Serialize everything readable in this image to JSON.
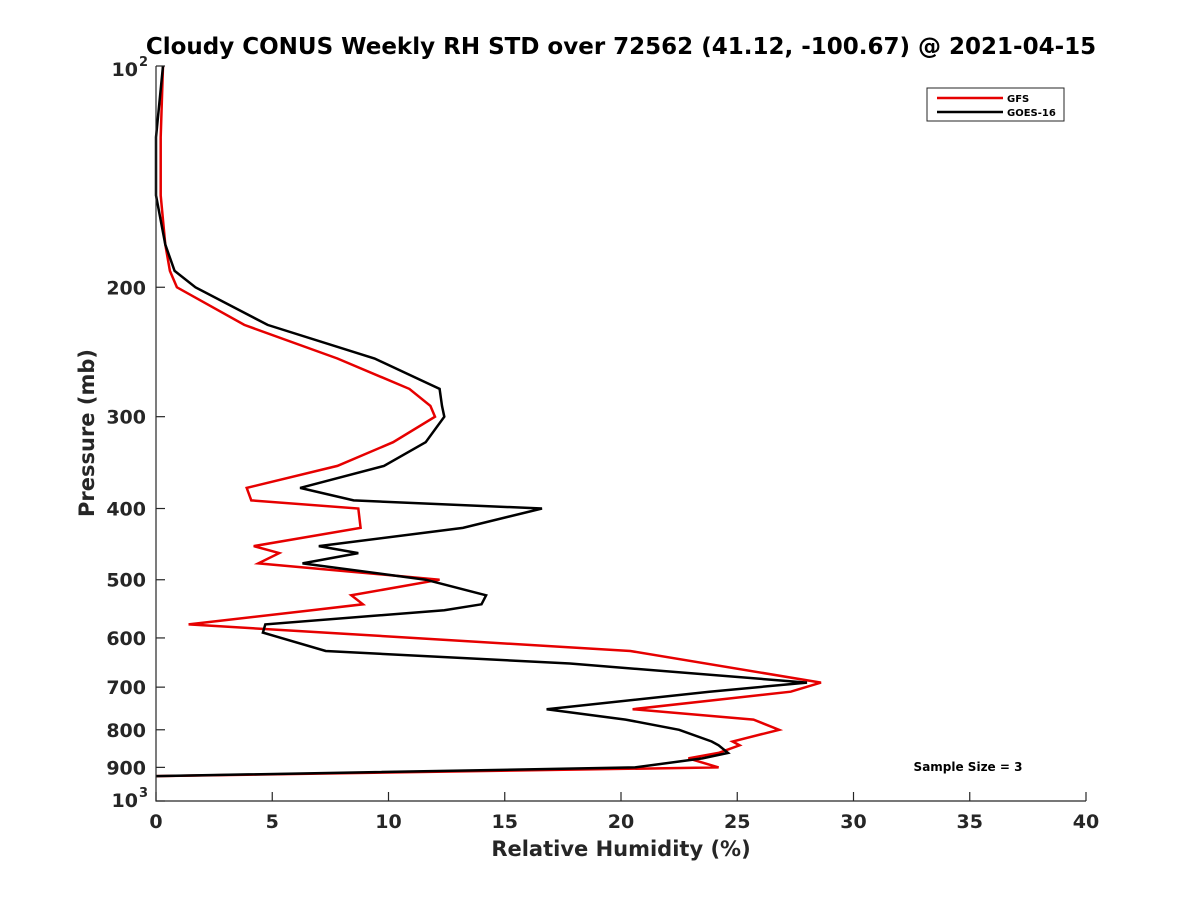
{
  "chart_data": {
    "type": "line",
    "title": "Cloudy CONUS Weekly RH STD over 72562 (41.12, -100.67) @ 2021-04-15",
    "xlabel": "Relative Humidity (%)",
    "ylabel": "Pressure (mb)",
    "xlim": [
      0,
      40
    ],
    "ylim": [
      100,
      1000
    ],
    "y_scale": "log",
    "y_reversed": true,
    "x_ticks": [
      "0",
      "5",
      "10",
      "15",
      "20",
      "25",
      "30",
      "35",
      "40"
    ],
    "y_ticks": [
      {
        "value": 100,
        "base": "10",
        "exp": "2"
      },
      {
        "value": 200,
        "label": "200"
      },
      {
        "value": 300,
        "label": "300"
      },
      {
        "value": 400,
        "label": "400"
      },
      {
        "value": 500,
        "label": "500"
      },
      {
        "value": 600,
        "label": "600"
      },
      {
        "value": 700,
        "label": "700"
      },
      {
        "value": 800,
        "label": "800"
      },
      {
        "value": 900,
        "label": "900"
      },
      {
        "value": 1000,
        "base": "10",
        "exp": "3"
      }
    ],
    "grid": false,
    "legend_position": "top-right",
    "annotation": "Sample Size = 3",
    "series": [
      {
        "name": "GFS",
        "color": "#e60000",
        "points": [
          [
            0.3,
            100
          ],
          [
            0.2,
            125
          ],
          [
            0.2,
            150
          ],
          [
            0.4,
            175
          ],
          [
            0.6,
            190
          ],
          [
            0.9,
            200
          ],
          [
            3.8,
            225
          ],
          [
            7.8,
            250
          ],
          [
            10.9,
            275
          ],
          [
            11.8,
            290
          ],
          [
            12.0,
            300
          ],
          [
            10.2,
            325
          ],
          [
            7.8,
            350
          ],
          [
            3.9,
            375
          ],
          [
            4.1,
            390
          ],
          [
            8.7,
            400
          ],
          [
            8.8,
            425
          ],
          [
            4.2,
            450
          ],
          [
            5.3,
            460
          ],
          [
            4.4,
            475
          ],
          [
            12.2,
            500
          ],
          [
            8.4,
            525
          ],
          [
            8.9,
            540
          ],
          [
            6.7,
            550
          ],
          [
            1.4,
            575
          ],
          [
            20.4,
            625
          ],
          [
            28.6,
            690
          ],
          [
            27.3,
            710
          ],
          [
            20.5,
            750
          ],
          [
            25.7,
            775
          ],
          [
            26.8,
            800
          ],
          [
            24.8,
            830
          ],
          [
            25.1,
            840
          ],
          [
            24.2,
            860
          ],
          [
            22.9,
            875
          ],
          [
            24.2,
            900
          ],
          [
            0.0,
            925
          ]
        ]
      },
      {
        "name": "GOES-16",
        "color": "#000000",
        "points": [
          [
            0.3,
            100
          ],
          [
            0.0,
            125
          ],
          [
            0.0,
            150
          ],
          [
            0.4,
            175
          ],
          [
            0.8,
            190
          ],
          [
            1.7,
            200
          ],
          [
            4.8,
            225
          ],
          [
            9.4,
            250
          ],
          [
            12.2,
            275
          ],
          [
            12.3,
            290
          ],
          [
            12.4,
            300
          ],
          [
            11.6,
            325
          ],
          [
            9.8,
            350
          ],
          [
            6.2,
            375
          ],
          [
            8.5,
            390
          ],
          [
            16.6,
            400
          ],
          [
            13.2,
            425
          ],
          [
            7.0,
            450
          ],
          [
            8.7,
            460
          ],
          [
            6.3,
            475
          ],
          [
            11.6,
            500
          ],
          [
            14.2,
            525
          ],
          [
            14.0,
            540
          ],
          [
            12.4,
            550
          ],
          [
            4.7,
            575
          ],
          [
            4.6,
            590
          ],
          [
            7.3,
            625
          ],
          [
            17.8,
            650
          ],
          [
            28.0,
            690
          ],
          [
            23.8,
            710
          ],
          [
            16.8,
            750
          ],
          [
            20.2,
            775
          ],
          [
            22.5,
            800
          ],
          [
            23.9,
            830
          ],
          [
            24.2,
            840
          ],
          [
            24.6,
            860
          ],
          [
            23.5,
            875
          ],
          [
            20.6,
            900
          ],
          [
            0.0,
            925
          ]
        ]
      }
    ]
  }
}
